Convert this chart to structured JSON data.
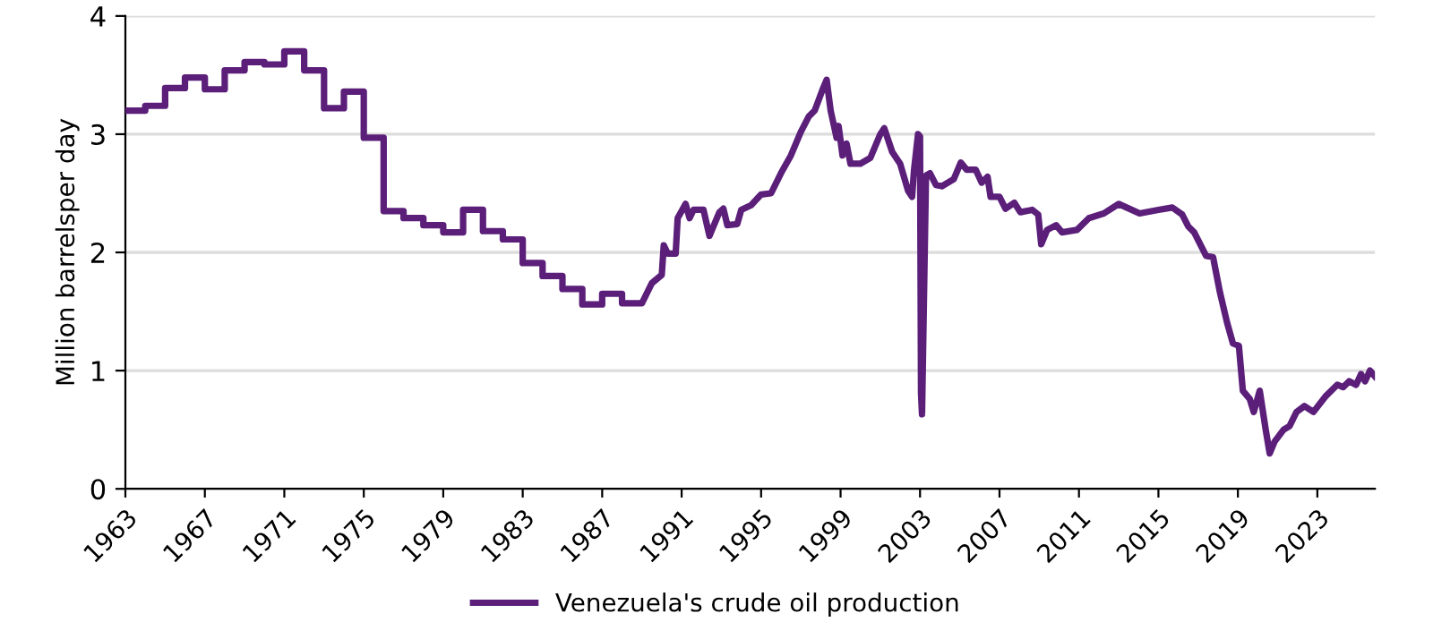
{
  "chart_data": {
    "type": "line",
    "ylabel": "Million barrelsper day",
    "xlim": [
      1963,
      2025.9
    ],
    "ylim": [
      0,
      4
    ],
    "xticks": [
      1963,
      1967,
      1971,
      1975,
      1979,
      1983,
      1987,
      1991,
      1995,
      1999,
      2003,
      2007,
      2011,
      2015,
      2019,
      2023
    ],
    "yticks": [
      0,
      1,
      2,
      3,
      4
    ],
    "grid": "y",
    "legend": "bottom",
    "marker": "none",
    "line_style": "solid",
    "series": [
      {
        "name": "Venezuela's crude oil production",
        "color": "#5b1f7a",
        "x": [
          1963,
          1964,
          1964,
          1965,
          1965,
          1966,
          1966,
          1967,
          1967,
          1968,
          1968,
          1969,
          1969,
          1970,
          1970,
          1971,
          1971,
          1972,
          1972,
          1973,
          1973,
          1974,
          1974,
          1975,
          1975,
          1976,
          1976,
          1977,
          1977,
          1978,
          1978,
          1979,
          1979,
          1980,
          1980,
          1981,
          1981,
          1982,
          1982,
          1983,
          1983,
          1984,
          1984,
          1985,
          1985,
          1986,
          1986,
          1987,
          1987,
          1988,
          1988,
          1989,
          1989.5,
          1990,
          1990.1,
          1990.3,
          1990.7,
          1990.8,
          1991.2,
          1991.4,
          1991.6,
          1992.1,
          1992.4,
          1992.9,
          1993.1,
          1993.3,
          1993.8,
          1994,
          1994.5,
          1995,
          1995.5,
          1996,
          1996.5,
          1997,
          1997.4,
          1997.7,
          1998.1,
          1998.3,
          1998.5,
          1998.8,
          1998.9,
          1999.1,
          1999.3,
          1999.5,
          2000,
          2000.5,
          2001,
          2001.2,
          2001.6,
          2002,
          2002.4,
          2002.6,
          2002.7,
          2002.9,
          2003,
          2003.05,
          2003.1,
          2003.3,
          2003.5,
          2003.8,
          2004.1,
          2004.7,
          2005.05,
          2005.35,
          2005.8,
          2006.1,
          2006.4,
          2006.55,
          2007,
          2007.3,
          2007.75,
          2008.05,
          2008.65,
          2008.95,
          2009.1,
          2009.4,
          2009.85,
          2010.15,
          2010.9,
          2011.5,
          2012.25,
          2013,
          2014.05,
          2015,
          2015.7,
          2016.2,
          2016.5,
          2016.8,
          2017.4,
          2017.75,
          2018.1,
          2018.45,
          2018.75,
          2019.05,
          2019.25,
          2019.6,
          2019.8,
          2020.1,
          2020.4,
          2020.6,
          2020.85,
          2021.3,
          2021.6,
          2021.95,
          2022.35,
          2022.8,
          2023.4,
          2024,
          2024.3,
          2024.6,
          2024.95,
          2025.2,
          2025.4,
          2025.65,
          2025.9
        ],
        "values": [
          3.2,
          3.2,
          3.24,
          3.24,
          3.39,
          3.39,
          3.48,
          3.48,
          3.38,
          3.38,
          3.54,
          3.54,
          3.61,
          3.61,
          3.59,
          3.59,
          3.7,
          3.7,
          3.54,
          3.54,
          3.22,
          3.22,
          3.36,
          3.36,
          2.97,
          2.97,
          2.35,
          2.35,
          2.29,
          2.29,
          2.23,
          2.23,
          2.17,
          2.17,
          2.36,
          2.36,
          2.18,
          2.18,
          2.11,
          2.11,
          1.91,
          1.91,
          1.8,
          1.8,
          1.69,
          1.69,
          1.56,
          1.56,
          1.65,
          1.65,
          1.57,
          1.57,
          1.74,
          1.81,
          2.06,
          1.99,
          1.99,
          2.29,
          2.41,
          2.29,
          2.36,
          2.36,
          2.14,
          2.34,
          2.37,
          2.23,
          2.24,
          2.36,
          2.4,
          2.49,
          2.5,
          2.67,
          2.82,
          3.02,
          3.15,
          3.2,
          3.38,
          3.46,
          3.2,
          2.97,
          3.07,
          2.82,
          2.92,
          2.75,
          2.75,
          2.8,
          3.0,
          3.05,
          2.85,
          2.75,
          2.52,
          2.47,
          2.7,
          3.0,
          2.98,
          0.81,
          0.63,
          2.65,
          2.67,
          2.57,
          2.56,
          2.62,
          2.76,
          2.7,
          2.7,
          2.59,
          2.64,
          2.47,
          2.47,
          2.37,
          2.42,
          2.34,
          2.36,
          2.32,
          2.07,
          2.19,
          2.23,
          2.17,
          2.19,
          2.29,
          2.33,
          2.41,
          2.33,
          2.36,
          2.38,
          2.32,
          2.22,
          2.17,
          1.97,
          1.96,
          1.66,
          1.41,
          1.23,
          1.21,
          0.83,
          0.76,
          0.65,
          0.83,
          0.5,
          0.3,
          0.4,
          0.5,
          0.53,
          0.65,
          0.7,
          0.65,
          0.78,
          0.88,
          0.86,
          0.91,
          0.88,
          0.97,
          0.91,
          1.0,
          0.95
        ]
      }
    ]
  }
}
